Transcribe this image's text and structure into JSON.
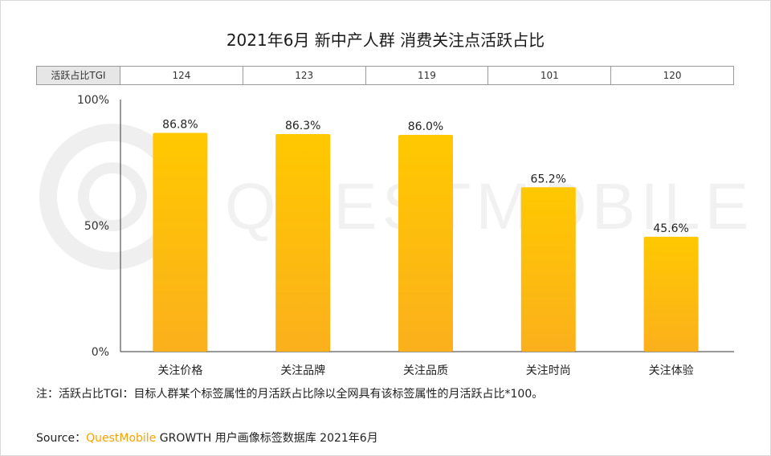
{
  "chart_data": {
    "type": "bar",
    "title": "2021年6月 新中产人群 消费关注点活跃占比",
    "categories": [
      "关注价格",
      "关注品牌",
      "关注品质",
      "关注时尚",
      "关注体验"
    ],
    "values": [
      86.8,
      86.3,
      86.0,
      65.2,
      45.6
    ],
    "value_labels": [
      "86.8%",
      "86.3%",
      "86.0%",
      "65.2%",
      "45.6%"
    ],
    "ylim": [
      0,
      100
    ],
    "yticks": [
      "0%",
      "50%",
      "100%"
    ],
    "ytick_values": [
      0,
      50,
      100
    ],
    "grid": false,
    "bar_color_top": "#ffc800",
    "bar_color_bottom": "#fbb01c"
  },
  "tgi": {
    "label": "活跃占比TGI",
    "values": [
      "124",
      "123",
      "119",
      "101",
      "120"
    ]
  },
  "watermark_text": "QUESTMOBILE",
  "note": "注：活跃占比TGI：目标人群某个标签属性的月活跃占比除以全网具有该标签属性的月活跃占比*100。",
  "source": {
    "prefix": "Source：",
    "brand": "QuestMobile",
    "rest": " GROWTH 用户画像标签数据库 2021年6月"
  }
}
